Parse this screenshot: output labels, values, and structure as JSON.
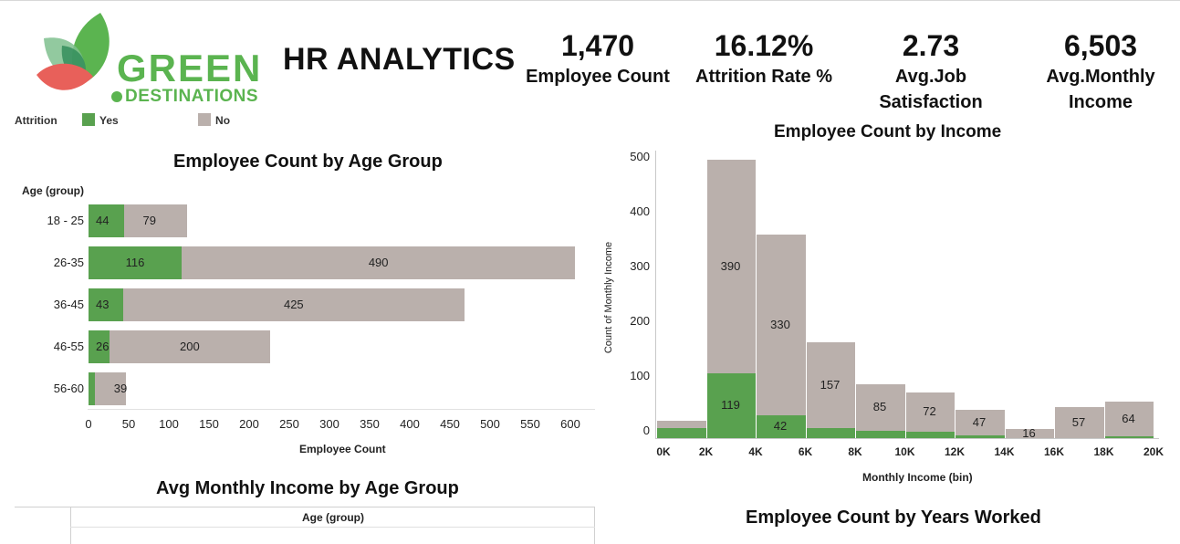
{
  "header": {
    "logo_text_main": "GREEN",
    "logo_text_sub": "DESTINATIONS",
    "title": "HR ANALYTICS"
  },
  "kpis": [
    {
      "value": "1,470",
      "label_line1": "Employee Count",
      "label_line2": ""
    },
    {
      "value": "16.12%",
      "label_line1": "Attrition Rate %",
      "label_line2": ""
    },
    {
      "value": "2.73",
      "label_line1": "Avg.Job",
      "label_line2": "Satisfaction"
    },
    {
      "value": "6,503",
      "label_line1": "Avg.Monthly",
      "label_line2": "Income"
    }
  ],
  "legend": {
    "title": "Attrition",
    "items": [
      {
        "label": "Yes",
        "color": "#59a14f"
      },
      {
        "label": "No",
        "color": "#bab0ac"
      }
    ]
  },
  "colors": {
    "yes": "#59a14f",
    "no": "#bab0ac",
    "logo_green": "#5bb450",
    "logo_red": "#e8605a"
  },
  "chart_data": [
    {
      "type": "bar",
      "orientation": "horizontal",
      "stacked": true,
      "title": "Employee Count  by Age Group",
      "ylabel": "Age (group)",
      "xlabel": "Employee Count",
      "xlim": [
        0,
        630
      ],
      "xticks": [
        "0",
        "50",
        "100",
        "150",
        "200",
        "250",
        "300",
        "350",
        "400",
        "450",
        "500",
        "550",
        "600"
      ],
      "categories": [
        "18 - 25",
        "26-35",
        "36-45",
        "46-55",
        "56-60"
      ],
      "series": [
        {
          "name": "Yes",
          "values": [
            44,
            116,
            43,
            26,
            8
          ],
          "labels": [
            "44",
            "116",
            "43",
            "26",
            ""
          ]
        },
        {
          "name": "No",
          "values": [
            79,
            490,
            425,
            200,
            39
          ],
          "labels": [
            "79",
            "490",
            "425",
            "200",
            "39"
          ]
        }
      ]
    },
    {
      "type": "bar",
      "stacked": true,
      "title": "Employee Count  by Income",
      "xlabel": "Monthly Income (bin)",
      "ylabel": "Count of Monthly Income",
      "ylim": [
        0,
        540
      ],
      "yticks": [
        "0",
        "100",
        "200",
        "300",
        "400",
        "500"
      ],
      "xticks": [
        "0K",
        "2K",
        "4K",
        "6K",
        "8K",
        "10K",
        "12K",
        "14K",
        "16K",
        "18K",
        "20K"
      ],
      "bins": [
        "0K-2K",
        "2K-4K",
        "4K-6K",
        "6K-8K",
        "8K-10K",
        "10K-12K",
        "12K-14K",
        "14K-16K",
        "16K-18K",
        "18K-20K"
      ],
      "series": [
        {
          "name": "Yes",
          "values": [
            18,
            119,
            42,
            18,
            14,
            12,
            5,
            0,
            0,
            3
          ],
          "labels": [
            "",
            "119",
            "42",
            "",
            "",
            "",
            "",
            "",
            "",
            ""
          ]
        },
        {
          "name": "No",
          "values": [
            14,
            390,
            330,
            157,
            85,
            72,
            47,
            16,
            57,
            64
          ],
          "labels": [
            "",
            "390",
            "330",
            "157",
            "85",
            "72",
            "47",
            "16",
            "57",
            "64"
          ]
        }
      ]
    }
  ],
  "bottom": {
    "chart_title_left": "Avg Monthly Income  by Age Group",
    "table_header": "Age (group)",
    "chart_title_right": "Employee Count  by Years Worked"
  }
}
